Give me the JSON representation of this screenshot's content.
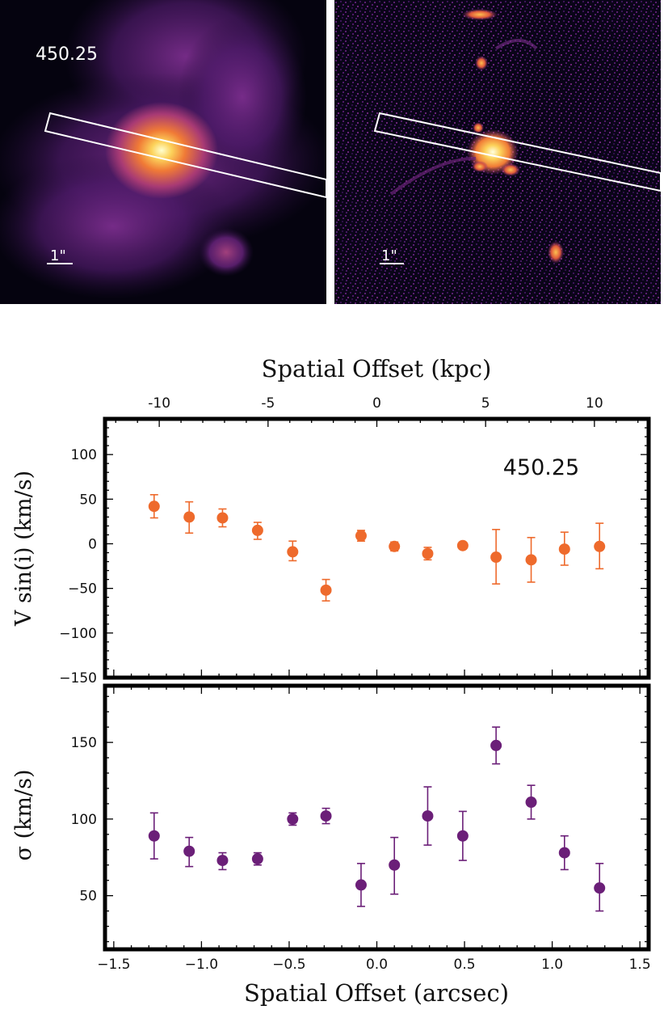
{
  "panels": [
    {
      "label": "450.25",
      "scale_label": "1\""
    },
    {
      "label": "",
      "scale_label": "1\""
    }
  ],
  "chart_data": [
    {
      "type": "scatter",
      "panel": "top",
      "annotation": "450.25",
      "title": "",
      "xlabel_top": "Spatial Offset (kpc)",
      "x_top_ticks": [
        "-10",
        "-5",
        "0",
        "5",
        "10"
      ],
      "ylabel": "V sin(i) (km/s)",
      "ylim": [
        -150,
        140
      ],
      "yticks": [
        100,
        50,
        0,
        -50,
        -100,
        -150
      ],
      "xlim": [
        -1.55,
        1.55
      ],
      "color": "#ee6a2c",
      "x": [
        -1.27,
        -1.07,
        -0.88,
        -0.68,
        -0.48,
        -0.29,
        -0.09,
        0.1,
        0.29,
        0.49,
        0.68,
        0.88,
        1.07,
        1.27
      ],
      "y": [
        42,
        30,
        29,
        15,
        -9,
        -52,
        9,
        -3,
        -11,
        -2,
        -15,
        -18,
        -6,
        -3
      ],
      "err_up": [
        13,
        17,
        10,
        9,
        12,
        12,
        6,
        5,
        7,
        3,
        31,
        25,
        19,
        26
      ],
      "err_down": [
        13,
        18,
        10,
        10,
        10,
        12,
        6,
        5,
        7,
        3,
        30,
        25,
        18,
        25
      ]
    },
    {
      "type": "scatter",
      "panel": "bottom",
      "title": "",
      "xlabel": "Spatial Offset (arcsec)",
      "ylabel": "σ (km/s)",
      "ylim": [
        15,
        187
      ],
      "yticks": [
        150,
        100,
        50
      ],
      "xlim": [
        -1.55,
        1.55
      ],
      "xticks": [
        -1.5,
        -1.0,
        -0.5,
        0.0,
        0.5,
        1.0,
        1.5
      ],
      "xtick_labels": [
        "−1.5",
        "−1.0",
        "−0.5",
        "0.0",
        "0.5",
        "1.0",
        "1.5"
      ],
      "color": "#6b1f78",
      "x": [
        -1.27,
        -1.07,
        -0.88,
        -0.68,
        -0.48,
        -0.29,
        -0.09,
        0.1,
        0.29,
        0.49,
        0.68,
        0.88,
        1.07,
        1.27
      ],
      "y": [
        89,
        79,
        73,
        74,
        100,
        102,
        57,
        70,
        102,
        89,
        148,
        111,
        78,
        55
      ],
      "err_up": [
        15,
        9,
        5,
        4,
        4,
        5,
        14,
        18,
        19,
        16,
        12,
        11,
        11,
        16
      ],
      "err_down": [
        15,
        10,
        6,
        4,
        4,
        5,
        14,
        19,
        19,
        16,
        12,
        11,
        11,
        15
      ]
    }
  ],
  "labels": {
    "top_ytick_labels": [
      "100",
      "50",
      "0",
      "−50",
      "−100",
      "−150"
    ],
    "bottom_ytick_labels": [
      "150",
      "100",
      "50"
    ]
  }
}
